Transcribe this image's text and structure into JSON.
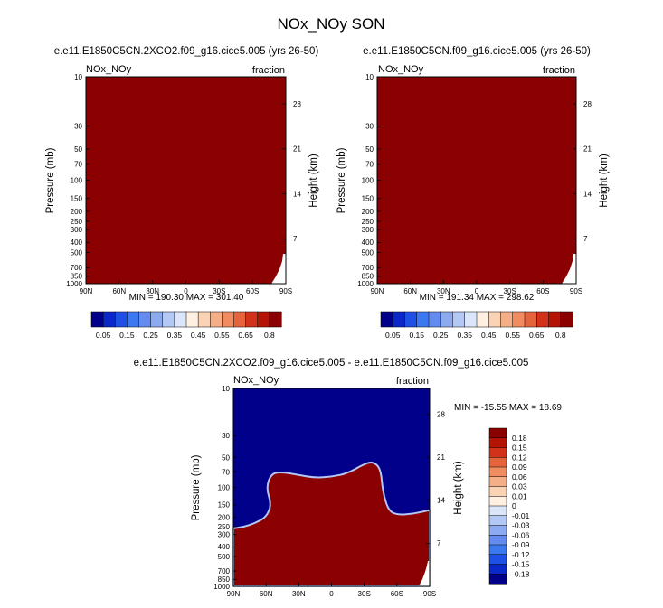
{
  "figure": {
    "title": "NOx_NOy SON",
    "colors": {
      "dark_red": "#8b0000",
      "dark_blue": "#00008b",
      "frame": "#000000"
    }
  },
  "chart_data": [
    {
      "type": "heatmap",
      "title": "e.e11.E1850C5CN.2XCO2.f09_g16.cice5.005 (yrs 26-50)",
      "left_label": "NOx_NOy",
      "right_label": "fraction",
      "xlabel": "",
      "ylabel": "Pressure (mb)",
      "ylabel_right": "Height (km)",
      "x_ticks": [
        "90N",
        "60N",
        "30N",
        "0",
        "30S",
        "60S",
        "90S"
      ],
      "y_ticks": [
        "10",
        "30",
        "50",
        "70",
        "100",
        "150",
        "200",
        "250",
        "300",
        "400",
        "500",
        "700",
        "850",
        "1000"
      ],
      "y_ticks_right": [
        "28",
        "21",
        "14",
        "7"
      ],
      "ylim": [
        1000,
        10
      ],
      "y_scale": "log",
      "stats": "MIN = 190.30   MAX = 301.40",
      "min": 190.3,
      "max": 301.4,
      "fill_color": "#8b0000",
      "colorbar": {
        "labels": [
          "0.05",
          "0.15",
          "0.25",
          "0.35",
          "0.45",
          "0.55",
          "0.65",
          "0.8"
        ],
        "colors": [
          "#00008b",
          "#0a28c8",
          "#1e50e6",
          "#3c78f0",
          "#648cf0",
          "#8caaf0",
          "#b4c8f5",
          "#dce6fa",
          "#fff0e1",
          "#fad2b4",
          "#f5af87",
          "#f08c5f",
          "#e6643c",
          "#d23219",
          "#b41405",
          "#8b0000"
        ]
      }
    },
    {
      "type": "heatmap",
      "title": "e.e11.E1850C5CN.f09_g16.cice5.005 (yrs 26-50)",
      "left_label": "NOx_NOy",
      "right_label": "fraction",
      "xlabel": "",
      "ylabel": "Pressure (mb)",
      "ylabel_right": "Height (km)",
      "x_ticks": [
        "90N",
        "60N",
        "30N",
        "0",
        "30S",
        "60S",
        "90S"
      ],
      "y_ticks": [
        "10",
        "30",
        "50",
        "70",
        "100",
        "150",
        "200",
        "250",
        "300",
        "400",
        "500",
        "700",
        "850",
        "1000"
      ],
      "y_ticks_right": [
        "28",
        "21",
        "14",
        "7"
      ],
      "ylim": [
        1000,
        10
      ],
      "y_scale": "log",
      "stats": "MIN = 191.34   MAX = 298.62",
      "min": 191.34,
      "max": 298.62,
      "fill_color": "#8b0000",
      "colorbar": {
        "labels": [
          "0.05",
          "0.15",
          "0.25",
          "0.35",
          "0.45",
          "0.55",
          "0.65",
          "0.8"
        ],
        "colors": [
          "#00008b",
          "#0a28c8",
          "#1e50e6",
          "#3c78f0",
          "#648cf0",
          "#8caaf0",
          "#b4c8f5",
          "#dce6fa",
          "#fff0e1",
          "#fad2b4",
          "#f5af87",
          "#f08c5f",
          "#e6643c",
          "#d23219",
          "#b41405",
          "#8b0000"
        ]
      }
    },
    {
      "type": "heatmap",
      "title": "e.e11.E1850C5CN.2XCO2.f09_g16.cice5.005 - e.e11.E1850C5CN.f09_g16.cice5.005",
      "left_label": "NOx_NOy",
      "right_label": "fraction",
      "xlabel": "",
      "ylabel": "Pressure (mb)",
      "ylabel_right": "Height (km)",
      "x_ticks": [
        "90N",
        "60N",
        "30N",
        "0",
        "30S",
        "60S",
        "90S"
      ],
      "y_ticks": [
        "10",
        "30",
        "50",
        "70",
        "100",
        "150",
        "200",
        "250",
        "300",
        "400",
        "500",
        "700",
        "850",
        "1000"
      ],
      "y_ticks_right": [
        "28",
        "21",
        "14",
        "7"
      ],
      "ylim": [
        1000,
        10
      ],
      "y_scale": "log",
      "stats": "MIN = -15.55   MAX =  18.69",
      "min": -15.55,
      "max": 18.69,
      "upper_fill_color": "#00008b",
      "lower_fill_color": "#8b0000",
      "boundary": [
        {
          "lat": 90,
          "p": 260
        },
        {
          "lat": 80,
          "p": 250
        },
        {
          "lat": 70,
          "p": 230
        },
        {
          "lat": 60,
          "p": 200
        },
        {
          "lat": 55,
          "p": 150
        },
        {
          "lat": 60,
          "p": 100
        },
        {
          "lat": 55,
          "p": 72
        },
        {
          "lat": 45,
          "p": 70
        },
        {
          "lat": 30,
          "p": 75
        },
        {
          "lat": 15,
          "p": 80
        },
        {
          "lat": 0,
          "p": 78
        },
        {
          "lat": -15,
          "p": 72
        },
        {
          "lat": -30,
          "p": 58
        },
        {
          "lat": -38,
          "p": 55
        },
        {
          "lat": -45,
          "p": 64
        },
        {
          "lat": -47,
          "p": 110
        },
        {
          "lat": -52,
          "p": 170
        },
        {
          "lat": -60,
          "p": 190
        },
        {
          "lat": -75,
          "p": 185
        },
        {
          "lat": -90,
          "p": 170
        }
      ],
      "colorbar": {
        "labels": [
          "0.18",
          "0.15",
          "0.12",
          "0.09",
          "0.06",
          "0.03",
          "0.01",
          "0",
          "-0.01",
          "-0.03",
          "-0.06",
          "-0.09",
          "-0.12",
          "-0.15",
          "-0.18"
        ],
        "colors": [
          "#8b0000",
          "#b41405",
          "#d23219",
          "#e6643c",
          "#f08c5f",
          "#f5af87",
          "#fad2b4",
          "#fff0e1",
          "#dce6fa",
          "#b4c8f5",
          "#8caaf0",
          "#648cf0",
          "#3c78f0",
          "#1e50e6",
          "#0a28c8",
          "#00008b"
        ]
      }
    }
  ]
}
